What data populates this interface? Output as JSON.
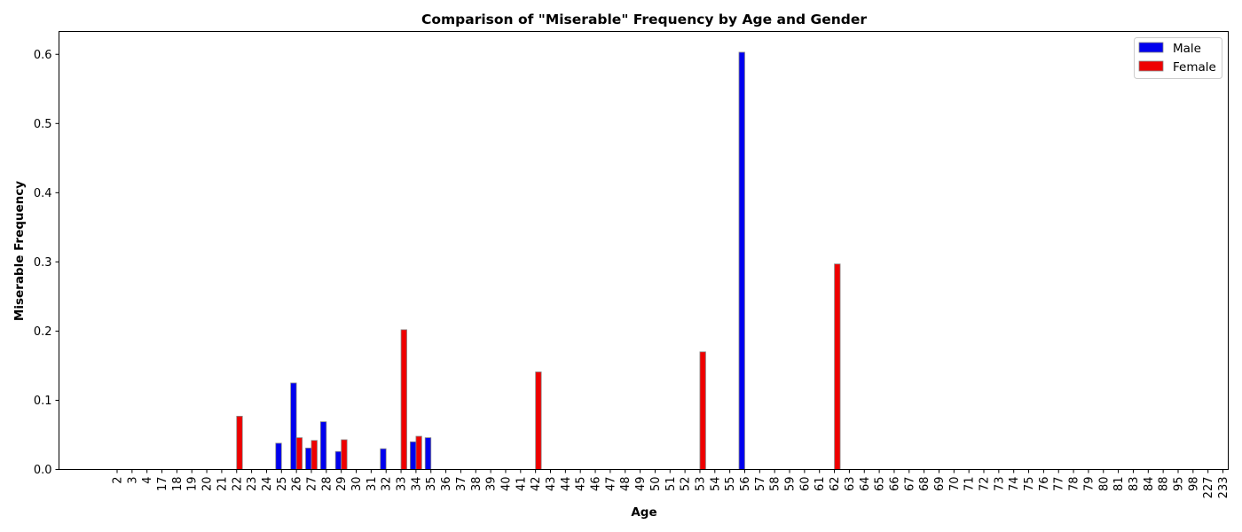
{
  "chart_data": {
    "type": "bar",
    "title": "Comparison of \"Miserable\" Frequency by Age and Gender",
    "xlabel": "Age",
    "ylabel": "Miserable Frequency",
    "ylim": [
      0,
      0.633
    ],
    "yticks": [
      "0.0",
      "0.1",
      "0.2",
      "0.3",
      "0.4",
      "0.5",
      "0.6"
    ],
    "grid": false,
    "legend_position": "top-right",
    "categories": [
      "2",
      "3",
      "4",
      "17",
      "18",
      "19",
      "20",
      "21",
      "22",
      "23",
      "24",
      "25",
      "26",
      "27",
      "28",
      "29",
      "30",
      "31",
      "32",
      "33",
      "34",
      "35",
      "36",
      "37",
      "38",
      "39",
      "40",
      "41",
      "42",
      "43",
      "44",
      "45",
      "46",
      "47",
      "48",
      "49",
      "50",
      "51",
      "52",
      "53",
      "54",
      "55",
      "56",
      "57",
      "58",
      "59",
      "60",
      "61",
      "62",
      "63",
      "64",
      "65",
      "66",
      "67",
      "68",
      "69",
      "70",
      "71",
      "72",
      "73",
      "74",
      "75",
      "76",
      "77",
      "78",
      "79",
      "80",
      "81",
      "83",
      "84",
      "88",
      "95",
      "98",
      "227",
      "233"
    ],
    "series": [
      {
        "name": "Male",
        "color": "#0000ee",
        "values": {
          "25": 0.038,
          "26": 0.125,
          "27": 0.031,
          "28": 0.069,
          "29": 0.026,
          "32": 0.03,
          "34": 0.04,
          "35": 0.046,
          "56": 0.603
        }
      },
      {
        "name": "Female",
        "color": "#ee0000",
        "values": {
          "22": 0.077,
          "26": 0.046,
          "27": 0.042,
          "29": 0.043,
          "33": 0.202,
          "34": 0.048,
          "42": 0.141,
          "53": 0.17,
          "62": 0.297
        }
      }
    ]
  }
}
